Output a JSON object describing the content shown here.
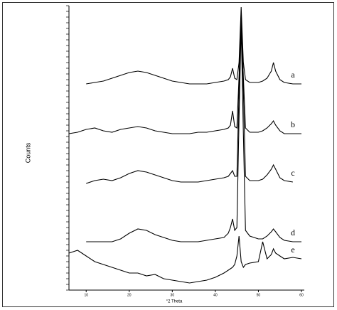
{
  "chart_data": {
    "type": "line",
    "x_label": "°2 Theta",
    "y_label": "Counts",
    "x": [
      6,
      8,
      10,
      12,
      14,
      16,
      18,
      20,
      22,
      24,
      26,
      28,
      30,
      32,
      34,
      36,
      38,
      40,
      42,
      43,
      43.5,
      44,
      44.5,
      45,
      45.5,
      46,
      46.5,
      47,
      48,
      50,
      51,
      52,
      53,
      53.5,
      54,
      55,
      56,
      58,
      60
    ],
    "series": [
      {
        "name": "a",
        "color": "#000000",
        "values": [
          null,
          null,
          72.5,
          73,
          73.5,
          74.5,
          75.5,
          76.5,
          77,
          76.5,
          75.5,
          74.5,
          73.5,
          73,
          72.5,
          72.5,
          72.5,
          73,
          73.5,
          74,
          75,
          78,
          74.5,
          74,
          80,
          99.5,
          80,
          74,
          73,
          73,
          73.5,
          74.5,
          77,
          80,
          77,
          74,
          73,
          72.5,
          72.5
        ]
      },
      {
        "name": "b",
        "color": "#000000",
        "values": [
          55,
          55.5,
          56.5,
          57,
          56,
          55.5,
          56.5,
          57,
          57.5,
          57,
          56,
          55.5,
          55,
          55,
          55,
          55.5,
          55.5,
          56,
          56.5,
          57,
          58,
          63,
          57.5,
          57,
          75,
          98,
          75,
          57,
          55.5,
          55.5,
          56,
          57,
          58.5,
          59.5,
          58,
          56,
          55,
          55,
          55
        ]
      },
      {
        "name": "c",
        "color": "#000000",
        "values": [
          null,
          null,
          37.5,
          38.5,
          39,
          38.5,
          39.5,
          41,
          42,
          41.5,
          40.5,
          39.5,
          38.5,
          38,
          38,
          38,
          38.5,
          39,
          39.5,
          40,
          41,
          42,
          40,
          40,
          70,
          96,
          70,
          40,
          38.5,
          38.5,
          39,
          40.5,
          42.5,
          44,
          42.5,
          39.5,
          38.5,
          38,
          null
        ]
      },
      {
        "name": "d",
        "color": "#000000",
        "values": [
          null,
          null,
          17,
          17,
          17,
          17,
          18,
          20,
          21.5,
          21,
          19.5,
          18.5,
          17.5,
          17,
          17,
          17,
          17.5,
          18,
          18.5,
          20,
          22,
          25,
          21,
          22,
          60,
          93,
          55,
          21,
          19,
          18,
          18,
          19,
          20.5,
          21.5,
          20.5,
          18.5,
          17.5,
          17,
          17
        ]
      },
      {
        "name": "e",
        "color": "#000000",
        "values": [
          13,
          14,
          12,
          10,
          9,
          8,
          7,
          6,
          6,
          5,
          5.5,
          4,
          3.5,
          3,
          2.5,
          3,
          3.5,
          4.5,
          6,
          7,
          7.5,
          8,
          9,
          12,
          19,
          10,
          8,
          9,
          9.5,
          10,
          17,
          11,
          12.5,
          14.5,
          13,
          12,
          11,
          11.5,
          11
        ]
      }
    ],
    "xlim": [
      6,
      60
    ],
    "xticks": [
      10,
      20,
      30,
      40,
      50,
      60
    ],
    "ylim": [
      0,
      100
    ]
  }
}
